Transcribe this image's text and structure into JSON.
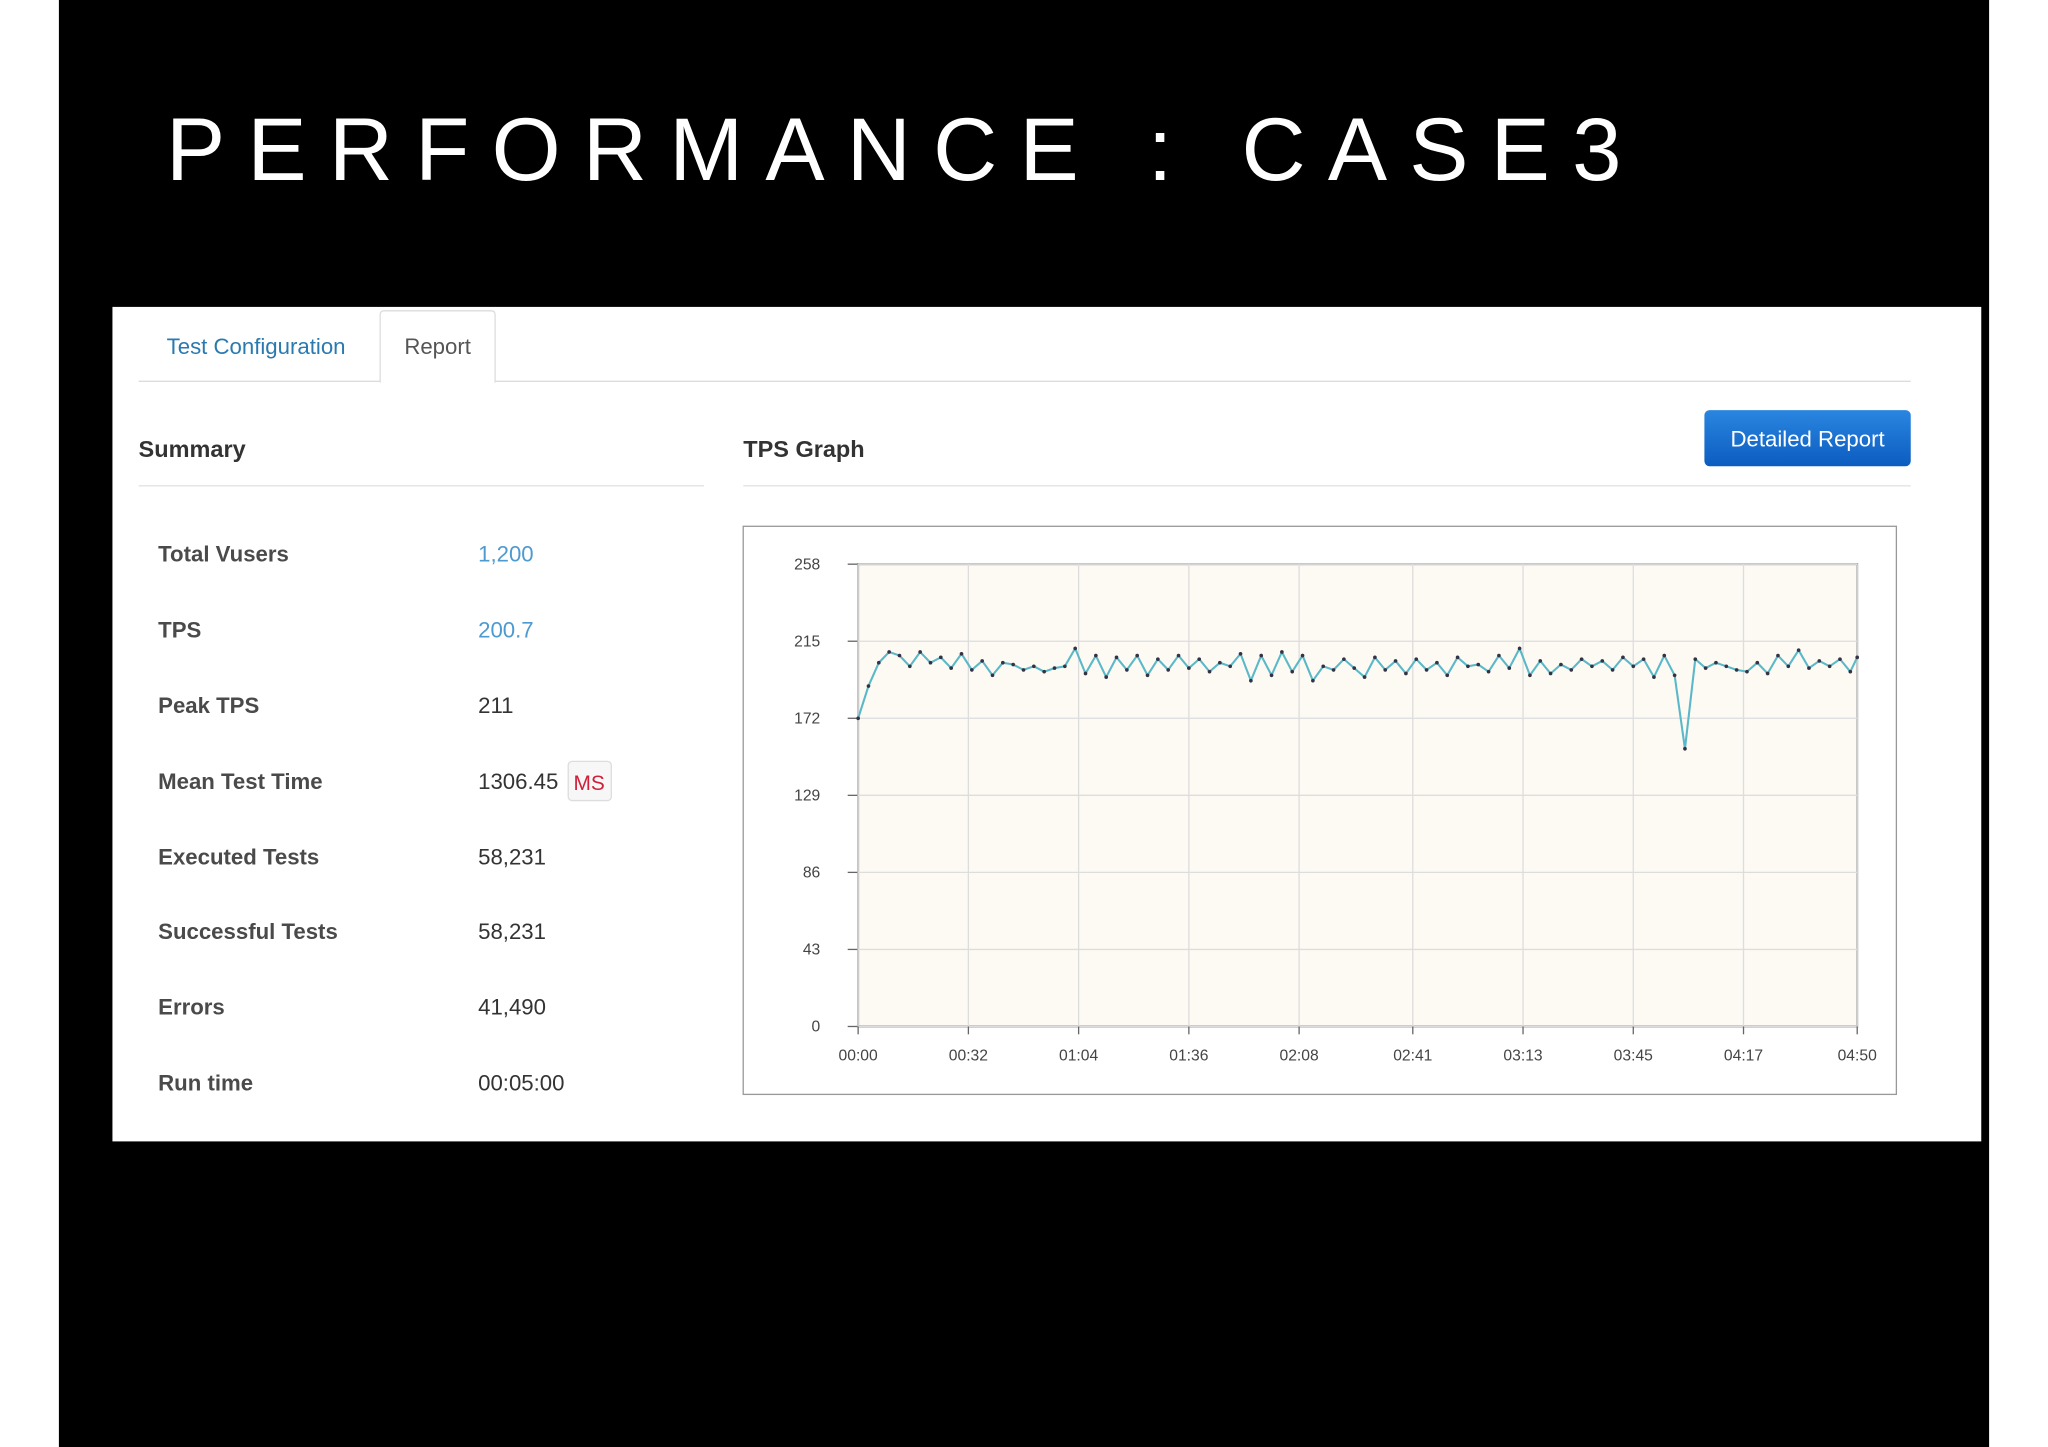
{
  "slide_title": "PERFORMANCE : CASE3",
  "tabs": [
    "Test Configuration",
    "Report"
  ],
  "button": "Detailed Report",
  "summary": {
    "title": "Summary",
    "rows": [
      {
        "label": "Total Vusers",
        "value": "1,200"
      },
      {
        "label": "TPS",
        "value": "200.7"
      },
      {
        "label": "Peak TPS",
        "value": "211"
      },
      {
        "label": "Mean Test Time",
        "value": "1306.45",
        "unit": "MS"
      },
      {
        "label": "Executed Tests",
        "value": "58,231"
      },
      {
        "label": "Successful Tests",
        "value": "58,231"
      },
      {
        "label": "Errors",
        "value": "41,490"
      },
      {
        "label": "Run time",
        "value": "00:05:00"
      }
    ]
  },
  "chart_data": {
    "type": "line",
    "title": "TPS Graph",
    "color": "#5bb8c8",
    "grid": true,
    "x": [
      0,
      3,
      6,
      9,
      12,
      15,
      18,
      21,
      24,
      27,
      30,
      33,
      36,
      39,
      42,
      45,
      48,
      51,
      54,
      57,
      60,
      63,
      66,
      69,
      72,
      75,
      78,
      81,
      84,
      87,
      90,
      93,
      96,
      99,
      102,
      105,
      108,
      111,
      114,
      117,
      120,
      123,
      126,
      129,
      132,
      135,
      138,
      141,
      144,
      147,
      150,
      153,
      156,
      159,
      162,
      165,
      168,
      171,
      174,
      177,
      180,
      183,
      186,
      189,
      192,
      195,
      198,
      201,
      204,
      207,
      210,
      213,
      216,
      219,
      222,
      225,
      228,
      231,
      234,
      237,
      240,
      243,
      246,
      249,
      252,
      255,
      258,
      261,
      264,
      267,
      270,
      273,
      276,
      279,
      282,
      285,
      288,
      290
    ],
    "values": [
      172,
      190,
      203,
      209,
      207,
      201,
      209,
      203,
      206,
      200,
      208,
      199,
      204,
      196,
      203,
      202,
      199,
      201,
      198,
      200,
      201,
      211,
      197,
      207,
      195,
      206,
      199,
      207,
      196,
      205,
      199,
      207,
      200,
      205,
      198,
      203,
      201,
      208,
      193,
      207,
      196,
      209,
      198,
      207,
      193,
      201,
      199,
      205,
      200,
      195,
      206,
      199,
      204,
      197,
      205,
      199,
      203,
      196,
      206,
      201,
      202,
      198,
      207,
      200,
      211,
      196,
      204,
      197,
      202,
      199,
      205,
      201,
      204,
      199,
      206,
      201,
      205,
      195,
      207,
      196,
      155,
      205,
      200,
      203,
      201,
      199,
      198,
      203,
      197,
      207,
      201,
      210,
      200,
      204,
      201,
      205,
      198,
      206
    ],
    "xlim": [
      0,
      290
    ],
    "ylim": [
      0,
      258
    ],
    "yticks": [
      0,
      43,
      86,
      129,
      172,
      215,
      258
    ],
    "xticks": [
      {
        "value": 0,
        "label": "00:00"
      },
      {
        "value": 32,
        "label": "00:32"
      },
      {
        "value": 64,
        "label": "01:04"
      },
      {
        "value": 96,
        "label": "01:36"
      },
      {
        "value": 128,
        "label": "02:08"
      },
      {
        "value": 161,
        "label": "02:41"
      },
      {
        "value": 193,
        "label": "03:13"
      },
      {
        "value": 225,
        "label": "03:45"
      },
      {
        "value": 257,
        "label": "04:17"
      },
      {
        "value": 290,
        "label": "04:50"
      }
    ]
  }
}
